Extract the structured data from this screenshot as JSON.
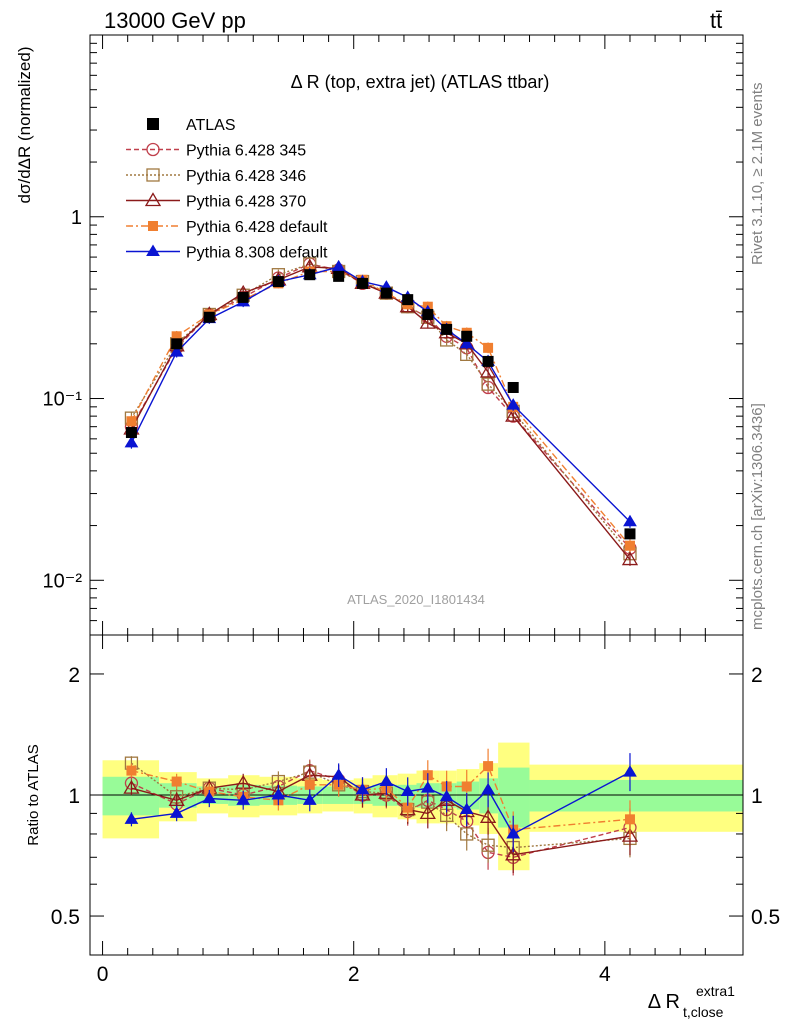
{
  "header": {
    "energy_label": "13000 GeV pp",
    "process_label": "tt̄"
  },
  "side_text": {
    "rivet": "Rivet 3.1.10, ≥ 2.1M events",
    "mcplots": "mcplots.cern.ch [arXiv:1306.3436]"
  },
  "ratio_ylabel": "Ratio to ATLAS",
  "chart_data": [
    {
      "type": "scatter",
      "title": "Δ R (top, extra jet) (ATLAS ttbar)",
      "analysis_label": "ATLAS_2020_I1801434",
      "ylabel": "dσ/dΔR (normalized)",
      "yscale": "log",
      "ylim": [
        0.005,
        10
      ],
      "xlim": [
        -0.1,
        5.1
      ],
      "y_major_ticks": [
        0.01,
        0.1,
        1
      ],
      "y_tick_labels": [
        "10⁻²",
        "10⁻¹",
        "1"
      ],
      "legend_position": "top-left",
      "x": [
        0.23,
        0.59,
        0.85,
        1.12,
        1.4,
        1.65,
        1.88,
        2.07,
        2.26,
        2.43,
        2.59,
        2.74,
        2.9,
        3.07,
        3.27,
        4.2
      ],
      "data": {
        "name": "ATLAS",
        "values": [
          0.065,
          0.2,
          0.28,
          0.36,
          0.44,
          0.48,
          0.47,
          0.43,
          0.38,
          0.35,
          0.29,
          0.24,
          0.22,
          0.16,
          0.115,
          0.018
        ]
      },
      "series": [
        {
          "name": "Pythia 6.428 345",
          "color": "#c0404c",
          "marker": "circle-open",
          "line": "dashed",
          "values": [
            0.07,
            0.19,
            0.29,
            0.36,
            0.46,
            0.55,
            0.51,
            0.43,
            0.38,
            0.32,
            0.28,
            0.22,
            0.19,
            0.115,
            0.08,
            0.015
          ]
        },
        {
          "name": "Pythia 6.428 346",
          "color": "#a07840",
          "marker": "square-open",
          "line": "dotted",
          "values": [
            0.078,
            0.2,
            0.29,
            0.37,
            0.48,
            0.55,
            0.5,
            0.44,
            0.38,
            0.32,
            0.28,
            0.21,
            0.175,
            0.12,
            0.085,
            0.014
          ]
        },
        {
          "name": "Pythia 6.428 370",
          "color": "#8b1a1a",
          "marker": "triangle-open",
          "line": "solid",
          "values": [
            0.068,
            0.195,
            0.29,
            0.38,
            0.45,
            0.53,
            0.52,
            0.43,
            0.38,
            0.32,
            0.26,
            0.23,
            0.2,
            0.14,
            0.08,
            0.013
          ]
        },
        {
          "name": "Pythia 6.428 default",
          "color": "#f07f30",
          "marker": "square-filled",
          "line": "dashdot",
          "values": [
            0.075,
            0.22,
            0.29,
            0.35,
            0.43,
            0.5,
            0.5,
            0.45,
            0.38,
            0.33,
            0.32,
            0.25,
            0.23,
            0.19,
            0.09,
            0.0155
          ]
        },
        {
          "name": "Pythia 8.308 default",
          "color": "#0a14d2",
          "marker": "triangle-filled",
          "line": "solid",
          "values": [
            0.057,
            0.18,
            0.275,
            0.34,
            0.44,
            0.48,
            0.53,
            0.44,
            0.41,
            0.36,
            0.3,
            0.24,
            0.2,
            0.16,
            0.092,
            0.021
          ]
        }
      ]
    },
    {
      "type": "scatter",
      "title": "",
      "ylabel": "Ratio to ATLAS",
      "xlabel": "Δ R",
      "xlabel_sup": "extra1",
      "xlabel_sub": "t,close",
      "yscale": "log",
      "ylim": [
        0.4,
        2.5
      ],
      "xlim": [
        -0.1,
        5.1
      ],
      "x_major_ticks": [
        0,
        2,
        4
      ],
      "y_major_ticks": [
        0.5,
        1,
        2
      ],
      "y_tick_labels": [
        "0.5",
        "1",
        "2"
      ],
      "bins": [
        {
          "lo": 0.0,
          "hi": 0.45,
          "g": 0.11,
          "y": 0.22
        },
        {
          "lo": 0.45,
          "hi": 0.75,
          "g": 0.07,
          "y": 0.14
        },
        {
          "lo": 0.75,
          "hi": 1.0,
          "g": 0.05,
          "y": 0.1
        },
        {
          "lo": 1.0,
          "hi": 1.25,
          "g": 0.06,
          "y": 0.12
        },
        {
          "lo": 1.25,
          "hi": 1.55,
          "g": 0.055,
          "y": 0.11
        },
        {
          "lo": 1.55,
          "hi": 1.75,
          "g": 0.05,
          "y": 0.1
        },
        {
          "lo": 1.75,
          "hi": 2.0,
          "g": 0.05,
          "y": 0.09
        },
        {
          "lo": 2.0,
          "hi": 2.15,
          "g": 0.05,
          "y": 0.1
        },
        {
          "lo": 2.15,
          "hi": 2.35,
          "g": 0.06,
          "y": 0.12
        },
        {
          "lo": 2.35,
          "hi": 2.5,
          "g": 0.06,
          "y": 0.13
        },
        {
          "lo": 2.5,
          "hi": 2.68,
          "g": 0.07,
          "y": 0.15
        },
        {
          "lo": 2.68,
          "hi": 2.82,
          "g": 0.07,
          "y": 0.15
        },
        {
          "lo": 2.82,
          "hi": 3.0,
          "g": 0.08,
          "y": 0.16
        },
        {
          "lo": 3.0,
          "hi": 3.15,
          "g": 0.1,
          "y": 0.2
        },
        {
          "lo": 3.15,
          "hi": 3.4,
          "g": 0.17,
          "y": 0.35
        },
        {
          "lo": 3.4,
          "hi": 5.1,
          "g": 0.09,
          "y": 0.19
        }
      ],
      "series": [
        {
          "name": "Pythia 6.428 345",
          "values": [
            1.07,
            0.95,
            1.04,
            1.0,
            1.05,
            1.15,
            1.09,
            1.0,
            1.0,
            0.91,
            0.97,
            0.92,
            0.86,
            0.72,
            0.7,
            0.83
          ]
        },
        {
          "name": "Pythia 6.428 346",
          "values": [
            1.2,
            0.99,
            1.04,
            1.03,
            1.08,
            1.14,
            1.06,
            1.02,
            1.01,
            0.92,
            0.96,
            0.89,
            0.8,
            0.75,
            0.74,
            0.78
          ]
        },
        {
          "name": "Pythia 6.428 370",
          "values": [
            1.04,
            0.97,
            1.04,
            1.07,
            1.02,
            1.12,
            1.11,
            1.0,
            1.01,
            0.92,
            0.9,
            0.97,
            0.91,
            0.88,
            0.71,
            0.79
          ]
        },
        {
          "name": "Pythia 6.428 default",
          "values": [
            1.15,
            1.08,
            1.02,
            0.99,
            0.97,
            1.06,
            1.06,
            1.03,
            1.04,
            0.93,
            1.12,
            1.05,
            1.05,
            1.18,
            0.82,
            0.87
          ]
        },
        {
          "name": "Pythia 8.308 default",
          "values": [
            0.87,
            0.9,
            0.98,
            0.97,
            1.0,
            0.97,
            1.12,
            1.03,
            1.08,
            1.02,
            1.04,
            0.99,
            0.92,
            1.03,
            0.8,
            1.14
          ]
        }
      ]
    }
  ]
}
